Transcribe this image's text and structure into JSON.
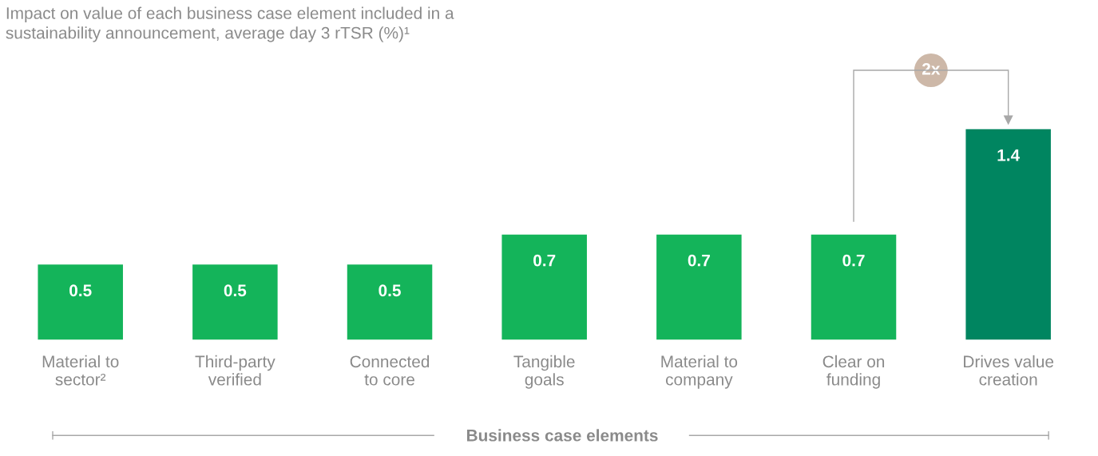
{
  "chart_data": {
    "type": "bar",
    "title": "Impact on value of each business case element included in a\nsustainability announcement, average day 3 rTSR (%)¹",
    "xlabel": "Business case elements",
    "categories": [
      "Material to\nsector²",
      "Third-party\nverified",
      "Connected\nto core",
      "Tangible\ngoals",
      "Material to\ncompany",
      "Clear on\nfunding",
      "Drives value\ncreation"
    ],
    "values": [
      0.5,
      0.5,
      0.5,
      0.7,
      0.7,
      0.7,
      1.4
    ],
    "colors": [
      "#14b45a",
      "#14b45a",
      "#14b45a",
      "#14b45a",
      "#14b45a",
      "#14b45a",
      "#008560"
    ],
    "data_labels": true,
    "annotations": [
      "2x"
    ],
    "grid": false,
    "legend": false
  }
}
